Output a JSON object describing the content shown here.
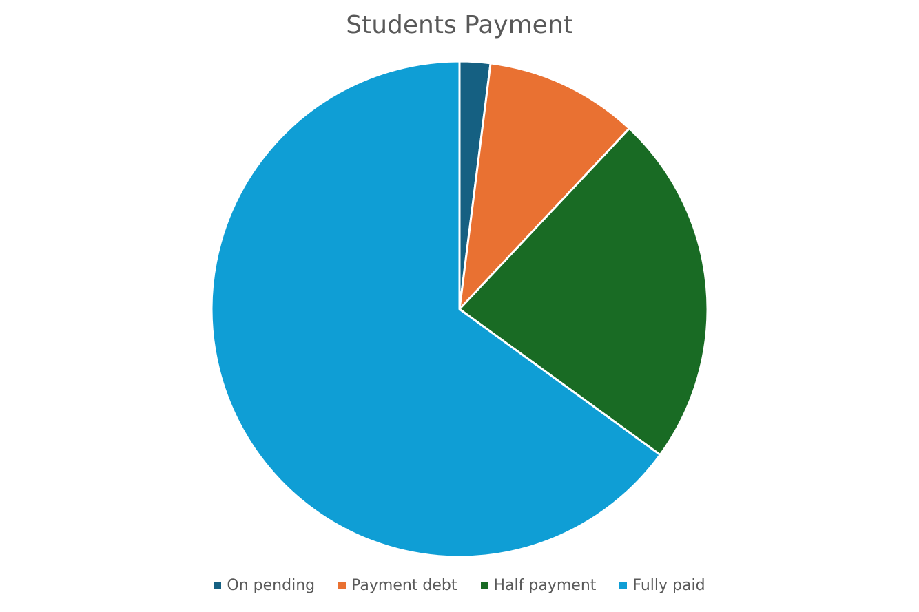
{
  "chart_data": {
    "type": "pie",
    "title": "Students Payment",
    "categories": [
      "On pending",
      "Payment debt",
      "Half payment",
      "Fully paid"
    ],
    "values": [
      2,
      10,
      23,
      65
    ],
    "colors": [
      "#156082",
      "#E97132",
      "#196B24",
      "#0F9ED5"
    ],
    "start_angle": "12 o'clock",
    "direction": "clockwise",
    "legend_position": "bottom",
    "slice_border_color": "#ffffff"
  }
}
